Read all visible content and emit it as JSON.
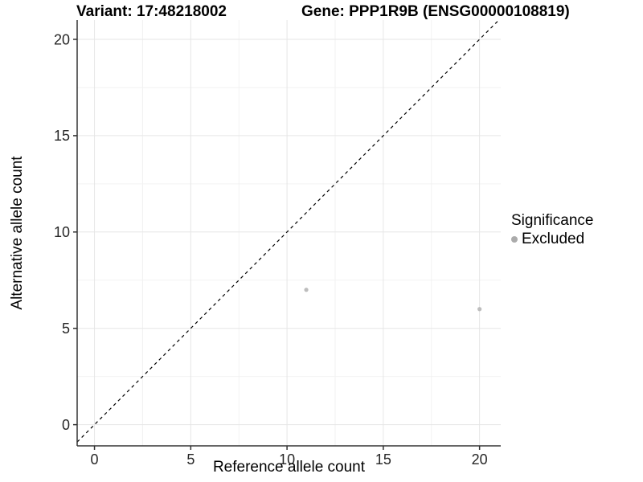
{
  "titles": {
    "variant": "Variant: 17:48218002",
    "gene": "Gene: PPP1R9B (ENSG00000108819)"
  },
  "chart_data": {
    "type": "scatter",
    "xlabel": "Reference allele count",
    "ylabel": "Alternative allele count",
    "xlim": [
      -0.9,
      21.1
    ],
    "ylim": [
      -1.1,
      21.0
    ],
    "x_ticks": [
      0,
      5,
      10,
      15,
      20
    ],
    "y_ticks": [
      0,
      5,
      10,
      15,
      20
    ],
    "x_minor": [
      2.5,
      7.5,
      12.5,
      17.5
    ],
    "y_minor": [
      2.5,
      7.5,
      12.5,
      17.5
    ],
    "grid": true,
    "series": [
      {
        "name": "Excluded",
        "color": "#bdbdbd",
        "points": [
          {
            "x": 11,
            "y": 7
          },
          {
            "x": 20,
            "y": 6
          }
        ]
      }
    ],
    "identity_line": {
      "style": "dashed",
      "color": "#000000",
      "slope": 1,
      "intercept": 0
    },
    "legend": {
      "title": "Significance",
      "position": "right",
      "items": [
        {
          "label": "Excluded",
          "color": "#ababab"
        }
      ]
    },
    "style_colors": {
      "grid_major": "#e6e6e6",
      "grid_minor": "#f2f2f2",
      "axis_line": "#333333",
      "tick_text": "#262626"
    }
  }
}
